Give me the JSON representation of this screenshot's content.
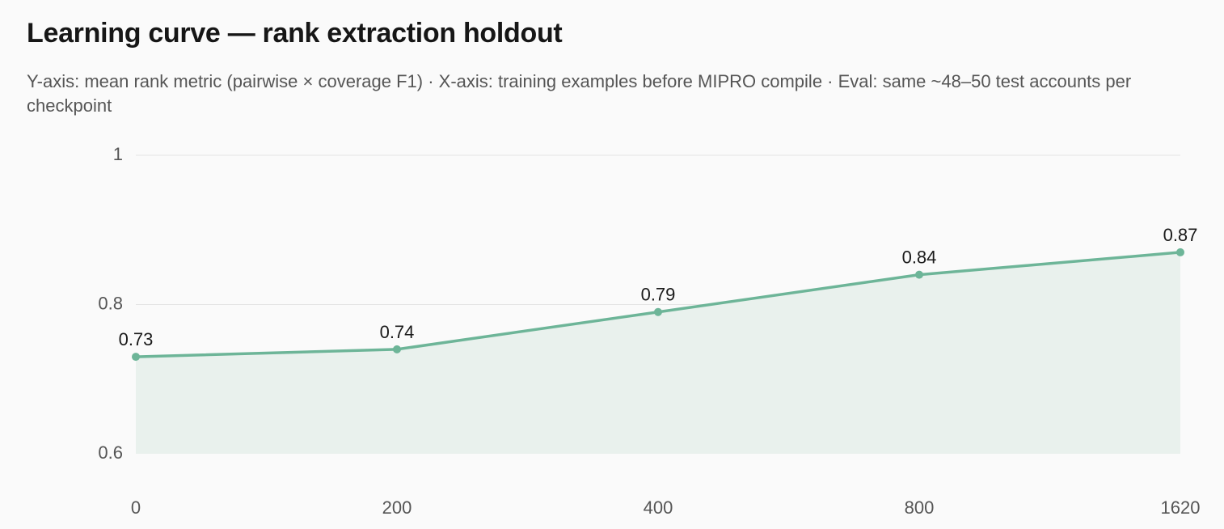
{
  "chart_data": {
    "type": "area",
    "title": "Learning curve — rank extraction holdout",
    "subtitle": "Y-axis: mean rank metric (pairwise × coverage F1) · X-axis: training examples before MIPRO compile · Eval: same ~48–50 test accounts per checkpoint",
    "x": [
      "0",
      "200",
      "400",
      "800",
      "1620"
    ],
    "series": [
      {
        "values": [
          0.73,
          0.74,
          0.79,
          0.84,
          0.87
        ],
        "color": "#6db598",
        "fill": "#e9f1ed"
      }
    ],
    "data_labels": [
      "0.73",
      "0.74",
      "0.79",
      "0.84",
      "0.87"
    ],
    "ylim": [
      0.6,
      1.0
    ],
    "yticks": [
      0.6,
      0.8,
      1.0
    ],
    "ytick_labels": [
      "0.6",
      "0.8",
      "1"
    ],
    "grid": true,
    "legend": "none",
    "gridline_color": "#e4e4e4"
  }
}
